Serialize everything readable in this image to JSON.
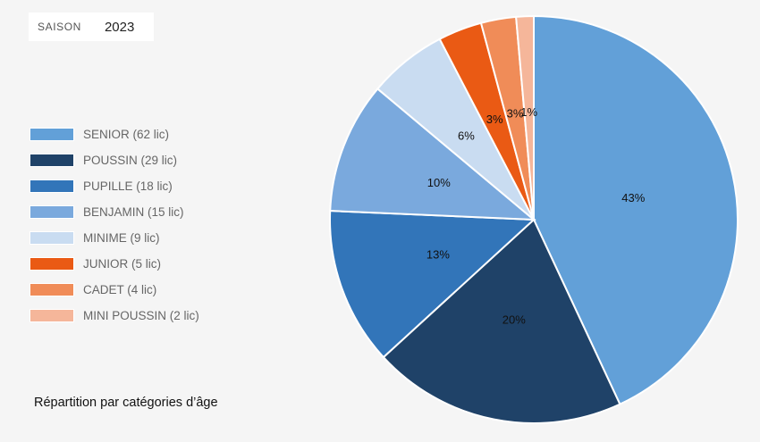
{
  "season": {
    "label": "SAISON",
    "value": "2023"
  },
  "caption": "Répartition par catégories d’âge",
  "chart_data": {
    "type": "pie",
    "title": "",
    "legend_position": "left",
    "slices": [
      {
        "legend": "SENIOR (62 lic)",
        "value": 62,
        "label": "43%",
        "color": "#62a0d8"
      },
      {
        "legend": "POUSSIN (29 lic)",
        "value": 29,
        "label": "20%",
        "color": "#1f4268"
      },
      {
        "legend": "PUPILLE (18 lic)",
        "value": 18,
        "label": "13%",
        "color": "#3275b9"
      },
      {
        "legend": "BENJAMIN (15 lic)",
        "value": 15,
        "label": "10%",
        "color": "#7aa9dd"
      },
      {
        "legend": "MINIME (9 lic)",
        "value": 9,
        "label": "6%",
        "color": "#c9dcf1"
      },
      {
        "legend": "JUNIOR (5 lic)",
        "value": 5,
        "label": "3%",
        "color": "#ea5a14"
      },
      {
        "legend": "CADET (4 lic)",
        "value": 4,
        "label": "3%",
        "color": "#f08c58"
      },
      {
        "legend": "MINI POUSSIN (2 lic)",
        "value": 2,
        "label": "1%",
        "color": "#f5b69a"
      }
    ]
  }
}
